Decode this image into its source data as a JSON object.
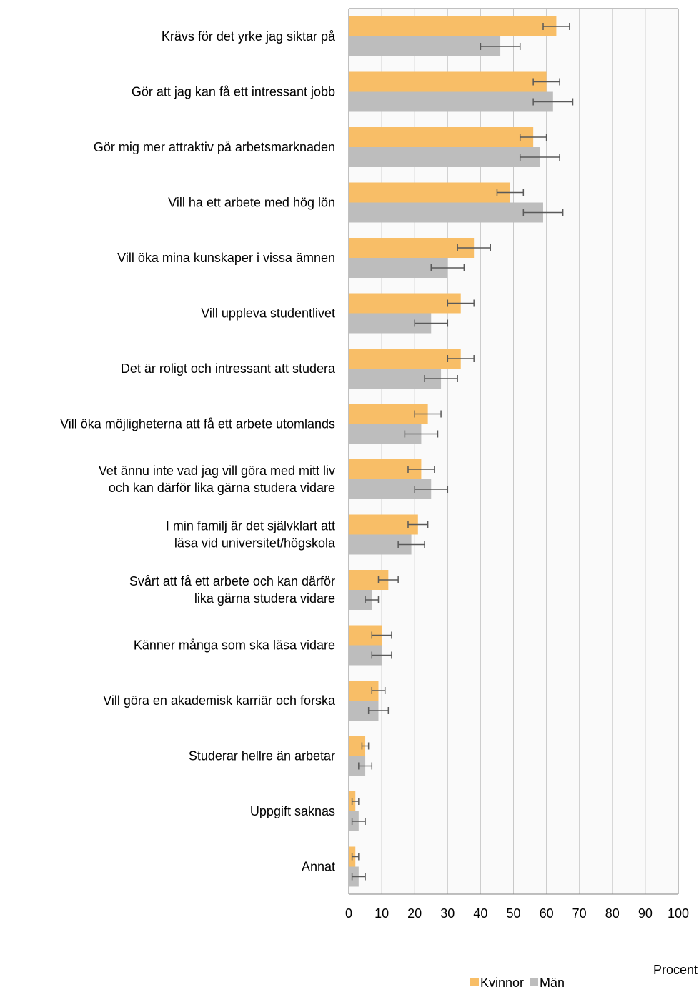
{
  "chart_data": {
    "type": "bar",
    "orientation": "horizontal",
    "categories": [
      [
        "Krävs för det yrke jag siktar på"
      ],
      [
        "Gör att jag kan få ett intressant jobb"
      ],
      [
        "Gör mig mer attraktiv på arbetsmarknaden"
      ],
      [
        "Vill ha ett arbete med hög lön"
      ],
      [
        "Vill öka mina kunskaper i vissa ämnen"
      ],
      [
        "Vill uppleva studentlivet"
      ],
      [
        "Det är roligt och intressant att studera"
      ],
      [
        "Vill öka möjligheterna att få ett arbete utomlands"
      ],
      [
        "Vet ännu inte vad jag vill göra med mitt liv",
        "och kan därför lika gärna studera vidare"
      ],
      [
        "I min familj är det självklart att",
        "läsa vid universitet/högskola"
      ],
      [
        "Svårt att få ett arbete och kan därför",
        "lika gärna studera vidare"
      ],
      [
        "Känner många som ska läsa vidare"
      ],
      [
        "Vill göra en akademisk karriär och forska"
      ],
      [
        "Studerar hellre än arbetar"
      ],
      [
        "Uppgift saknas"
      ],
      [
        "Annat"
      ]
    ],
    "series": [
      {
        "name": "Kvinnor",
        "color": "#F8BE67",
        "values": [
          63,
          60,
          56,
          49,
          38,
          34,
          34,
          24,
          22,
          21,
          12,
          10,
          9,
          5,
          2,
          2
        ],
        "error_low": [
          59,
          56,
          52,
          45,
          33,
          30,
          30,
          20,
          18,
          18,
          9,
          7,
          7,
          4,
          1,
          1
        ],
        "error_high": [
          67,
          64,
          60,
          53,
          43,
          38,
          38,
          28,
          26,
          24,
          15,
          13,
          11,
          6,
          3,
          3
        ]
      },
      {
        "name": "Män",
        "color": "#BDBDBD",
        "values": [
          46,
          62,
          58,
          59,
          30,
          25,
          28,
          22,
          25,
          19,
          7,
          10,
          9,
          5,
          3,
          3
        ],
        "error_low": [
          40,
          56,
          52,
          53,
          25,
          20,
          23,
          17,
          20,
          15,
          5,
          7,
          6,
          3,
          1,
          1
        ],
        "error_high": [
          52,
          68,
          64,
          65,
          35,
          30,
          33,
          27,
          30,
          23,
          9,
          13,
          12,
          7,
          5,
          5
        ]
      }
    ],
    "xlim": [
      0,
      100
    ],
    "xticks": [
      "0",
      "10",
      "20",
      "30",
      "40",
      "50",
      "60",
      "70",
      "80",
      "90",
      "100"
    ],
    "xlabel": "Procent",
    "grid": "vertical",
    "legend_position": "bottom-right",
    "colors": {
      "grid": "#C8C8C8",
      "axis": "#808080",
      "plot_bg": "#FAFAFA",
      "errorbar": "#595959"
    }
  }
}
